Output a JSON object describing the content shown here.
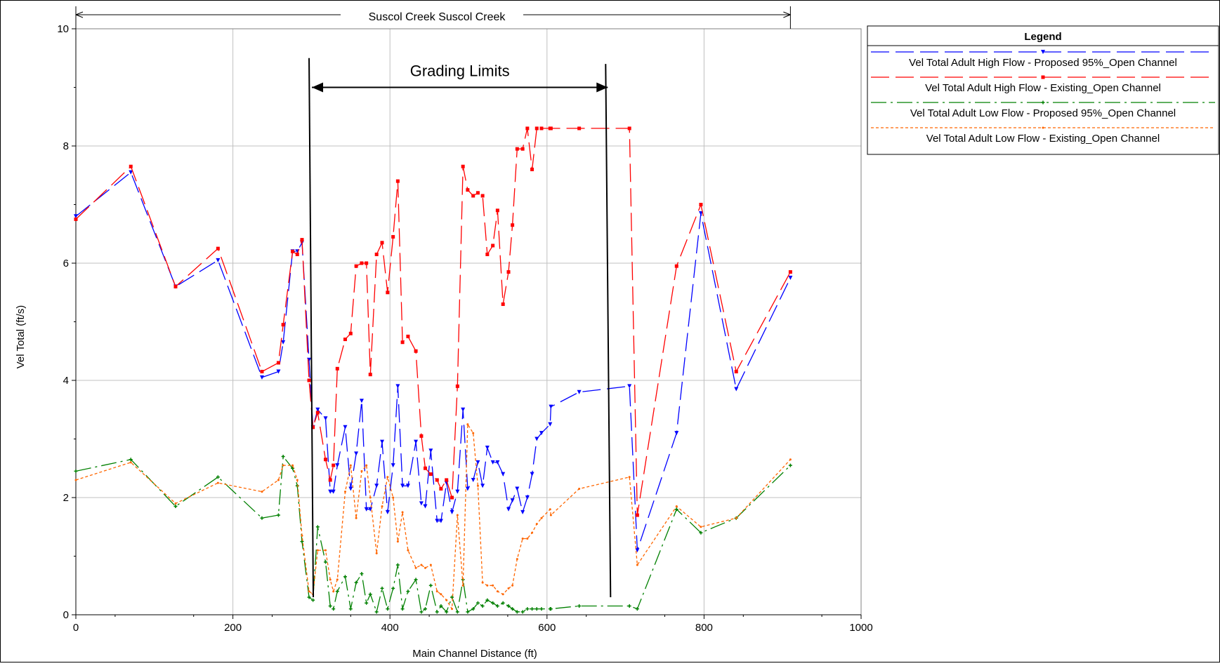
{
  "chart_data": {
    "type": "line",
    "title": "Suscol Creek Suscol Creek",
    "xlabel": "Main Channel Distance (ft)",
    "ylabel": "Vel Total (ft/s)",
    "xlim": [
      0,
      1000
    ],
    "ylim": [
      0,
      10
    ],
    "x_ticks": [
      "0",
      "200",
      "400",
      "600",
      "800",
      "1000"
    ],
    "y_ticks": [
      "0",
      "2",
      "4",
      "6",
      "8",
      "10"
    ],
    "grid": true,
    "legend_position": "right",
    "legend_title": "Legend",
    "annotation": {
      "label": "Grading Limits",
      "x_start": 297,
      "x_end": 672,
      "line_top_y": 9.5,
      "line_bottom_y": 0.3,
      "arrow_y": 9.0
    },
    "series": [
      {
        "name": "Vel Total Adult High Flow - Proposed 95%_Open Channel",
        "color": "#0000ff",
        "marker": "triangle",
        "x": [
          0,
          70,
          127,
          181,
          237,
          258,
          264,
          276,
          282,
          288,
          297,
          302,
          308,
          318,
          324,
          328,
          333,
          343,
          350,
          357,
          364,
          370,
          375,
          383,
          390,
          397,
          404,
          410,
          416,
          423,
          433,
          440,
          445,
          452,
          460,
          465,
          472,
          479,
          486,
          493,
          499,
          506,
          512,
          518,
          524,
          531,
          537,
          544,
          551,
          556,
          562,
          569,
          575,
          581,
          587,
          593,
          604,
          605,
          641,
          705,
          715,
          765,
          796,
          841,
          910
        ],
        "y": [
          6.8,
          7.55,
          5.6,
          6.05,
          4.05,
          4.15,
          4.65,
          6.2,
          6.2,
          6.35,
          4.35,
          3.2,
          3.5,
          3.35,
          2.1,
          2.1,
          2.55,
          3.2,
          2.15,
          2.75,
          3.65,
          1.8,
          1.8,
          2.2,
          2.95,
          1.75,
          2.55,
          3.9,
          2.2,
          2.2,
          2.95,
          1.9,
          1.85,
          2.8,
          1.6,
          1.6,
          2.25,
          1.75,
          2.1,
          3.5,
          2.15,
          2.3,
          2.6,
          2.2,
          2.85,
          2.6,
          2.6,
          2.4,
          1.8,
          1.95,
          2.15,
          1.75,
          2.0,
          2.4,
          3.0,
          3.1,
          3.25,
          3.55,
          3.8,
          3.9,
          1.1,
          3.1,
          6.85,
          3.85,
          5.75
        ]
      },
      {
        "name": "Vel Total Adult High Flow - Existing_Open Channel",
        "color": "#ff0000",
        "marker": "square",
        "x": [
          0,
          70,
          127,
          181,
          237,
          258,
          264,
          276,
          282,
          288,
          297,
          302,
          308,
          318,
          324,
          328,
          333,
          343,
          350,
          357,
          364,
          370,
          375,
          383,
          390,
          397,
          404,
          410,
          416,
          423,
          433,
          440,
          445,
          452,
          460,
          465,
          472,
          479,
          486,
          493,
          499,
          506,
          512,
          518,
          524,
          531,
          537,
          544,
          551,
          556,
          562,
          569,
          575,
          581,
          587,
          593,
          604,
          605,
          641,
          705,
          715,
          765,
          796,
          841,
          910
        ],
        "y": [
          6.75,
          7.65,
          5.6,
          6.25,
          4.15,
          4.3,
          4.95,
          6.2,
          6.15,
          6.4,
          4.0,
          3.2,
          3.45,
          2.65,
          2.3,
          2.55,
          4.2,
          4.7,
          4.8,
          5.95,
          6.0,
          6.0,
          4.1,
          6.15,
          6.35,
          5.5,
          6.45,
          7.4,
          4.65,
          4.75,
          4.5,
          3.05,
          2.5,
          2.4,
          2.3,
          2.15,
          2.3,
          2.0,
          3.9,
          7.65,
          7.25,
          7.15,
          7.2,
          7.15,
          6.15,
          6.3,
          6.9,
          5.3,
          5.85,
          6.65,
          7.95,
          7.95,
          8.3,
          7.6,
          8.3,
          8.3,
          8.3,
          8.3,
          8.3,
          8.3,
          1.7,
          5.95,
          7.0,
          4.15,
          5.85
        ]
      },
      {
        "name": "Vel Total Adult Low Flow - Proposed 95%_Open Channel",
        "color": "#008000",
        "marker": "plus",
        "x": [
          0,
          70,
          127,
          181,
          237,
          258,
          264,
          276,
          282,
          288,
          297,
          302,
          308,
          318,
          324,
          328,
          333,
          343,
          350,
          357,
          364,
          370,
          375,
          383,
          390,
          397,
          404,
          410,
          416,
          423,
          433,
          440,
          445,
          452,
          460,
          465,
          472,
          479,
          486,
          493,
          499,
          506,
          512,
          518,
          524,
          531,
          537,
          544,
          551,
          556,
          562,
          569,
          575,
          581,
          587,
          593,
          604,
          605,
          641,
          705,
          715,
          765,
          796,
          841,
          910
        ],
        "y": [
          2.45,
          2.65,
          1.85,
          2.35,
          1.65,
          1.7,
          2.7,
          2.5,
          2.2,
          1.25,
          0.3,
          0.25,
          1.5,
          0.9,
          0.15,
          0.1,
          0.4,
          0.65,
          0.1,
          0.55,
          0.7,
          0.2,
          0.35,
          0.05,
          0.45,
          0.1,
          0.45,
          0.85,
          0.1,
          0.4,
          0.6,
          0.05,
          0.1,
          0.5,
          0.05,
          0.15,
          0.05,
          0.3,
          0.05,
          0.6,
          0.05,
          0.1,
          0.2,
          0.15,
          0.25,
          0.2,
          0.15,
          0.2,
          0.15,
          0.1,
          0.05,
          0.05,
          0.1,
          0.1,
          0.1,
          0.1,
          0.1,
          0.1,
          0.15,
          0.15,
          0.1,
          1.8,
          1.4,
          1.65,
          2.55
        ]
      },
      {
        "name": "Vel Total Adult Low Flow - Existing_Open Channel",
        "color": "#ff6600",
        "marker": "dot",
        "x": [
          0,
          70,
          127,
          181,
          237,
          258,
          264,
          276,
          282,
          288,
          297,
          302,
          308,
          318,
          324,
          328,
          333,
          343,
          350,
          357,
          364,
          370,
          375,
          383,
          390,
          397,
          404,
          410,
          416,
          423,
          433,
          440,
          445,
          452,
          460,
          465,
          472,
          479,
          486,
          493,
          499,
          506,
          512,
          518,
          524,
          531,
          537,
          544,
          551,
          556,
          562,
          569,
          575,
          581,
          587,
          593,
          604,
          605,
          641,
          705,
          715,
          765,
          796,
          841,
          910
        ],
        "y": [
          2.3,
          2.6,
          1.9,
          2.25,
          2.1,
          2.3,
          2.55,
          2.55,
          2.3,
          1.35,
          0.4,
          0.35,
          1.1,
          1.1,
          0.6,
          0.4,
          0.6,
          2.1,
          2.55,
          1.65,
          2.45,
          2.55,
          2.0,
          1.05,
          1.85,
          2.35,
          2.0,
          1.25,
          1.75,
          1.1,
          0.8,
          0.85,
          0.8,
          0.85,
          0.4,
          0.35,
          0.25,
          0.1,
          1.7,
          0.5,
          3.25,
          3.1,
          2.2,
          0.55,
          0.5,
          0.5,
          0.4,
          0.35,
          0.45,
          0.5,
          0.95,
          1.3,
          1.3,
          1.4,
          1.55,
          1.65,
          1.8,
          1.7,
          2.15,
          2.35,
          0.85,
          1.85,
          1.5,
          1.65,
          2.65
        ]
      }
    ]
  }
}
